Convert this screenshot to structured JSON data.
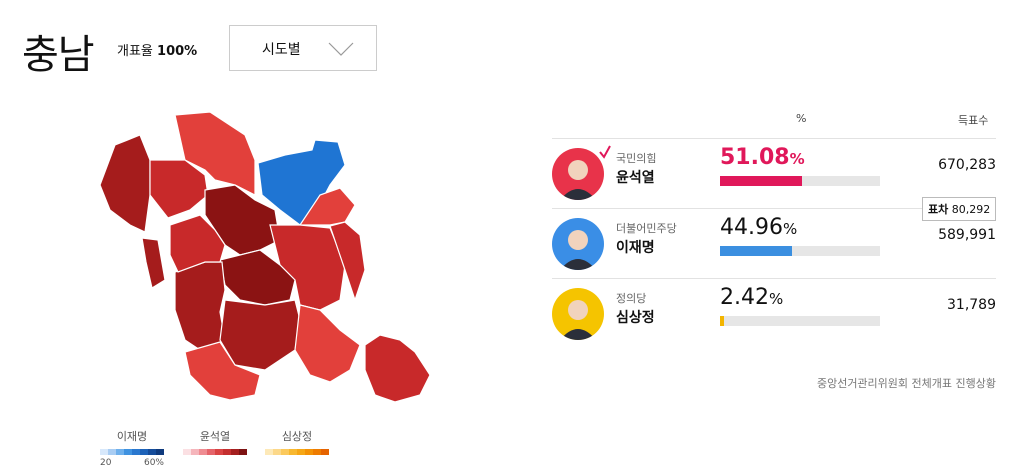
{
  "header": {
    "region": "충남",
    "count_label": "개표율",
    "count_value": "100%",
    "dropdown": "시도별"
  },
  "table": {
    "col_pct": "%",
    "col_votes": "득표수"
  },
  "candidates": [
    {
      "party": "국민의힘",
      "name": "윤석열",
      "pct": "51.08",
      "pct_value": 51.08,
      "votes": "670,283",
      "color": "#e0185a",
      "winner": true,
      "avatar_color": "#e8334a"
    },
    {
      "party": "더불어민주당",
      "name": "이재명",
      "pct": "44.96",
      "pct_value": 44.96,
      "votes": "589,991",
      "color": "#3b8fe0",
      "winner": false,
      "avatar_color": "#3a8ee6"
    },
    {
      "party": "정의당",
      "name": "심상정",
      "pct": "2.42",
      "pct_value": 2.42,
      "votes": "31,789",
      "color": "#f3b500",
      "winner": false,
      "avatar_color": "#f5c400"
    }
  ],
  "percent_sign": "%",
  "gap": {
    "label": "표차",
    "value": "80,292"
  },
  "source": "중앙선거관리위원회 전체개표 진행상황",
  "legend": {
    "items": [
      {
        "name": "이재명",
        "colors": [
          "#d7e8fb",
          "#a9cdf3",
          "#6fb0ec",
          "#3f92e0",
          "#2a78cf",
          "#1d62b8",
          "#154c9a",
          "#0f3a7d"
        ]
      },
      {
        "name": "윤석열",
        "colors": [
          "#fbe0e3",
          "#f5b5bb",
          "#ef8c92",
          "#e5646a",
          "#d94343",
          "#c42f2f",
          "#a41f1f",
          "#7d1212"
        ]
      },
      {
        "name": "심상정",
        "colors": [
          "#fde9b8",
          "#fcd889",
          "#fbc95c",
          "#f8b830",
          "#f6a716",
          "#f39206",
          "#ee7c00",
          "#e56300"
        ]
      }
    ],
    "min": "20",
    "max": "60%"
  },
  "map_colors": {
    "light": "#e2403b",
    "medium": "#c8292a",
    "dark": "#a51c1c",
    "darkest": "#8b1313",
    "blue": "#1f75d3"
  }
}
